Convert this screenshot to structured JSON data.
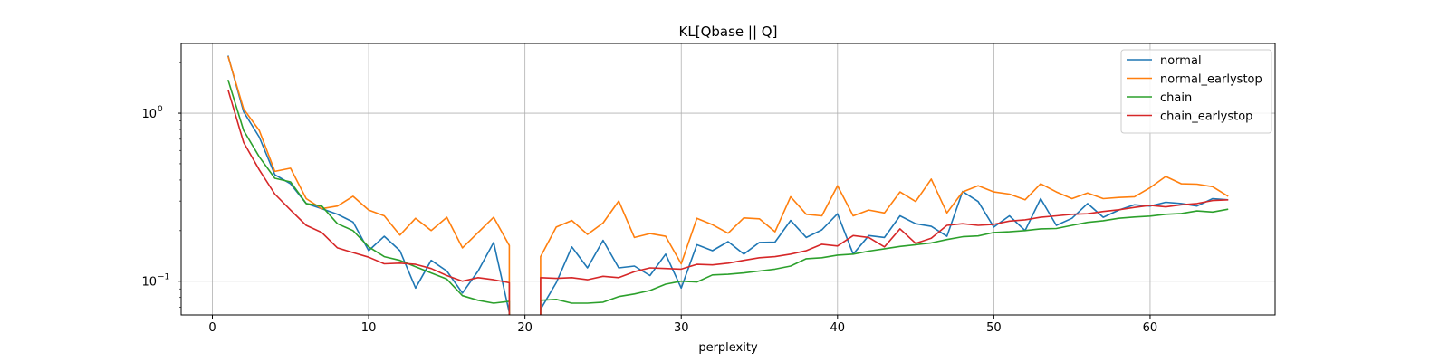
{
  "chart_data": {
    "type": "line",
    "title": "KL[Qbase || Q]",
    "xlabel": "perplexity",
    "ylabel": "",
    "yscale": "log",
    "xlim": [
      -2,
      68
    ],
    "ylim": [
      0.063,
      2.6
    ],
    "xticks": [
      0,
      10,
      20,
      30,
      40,
      50,
      60
    ],
    "yticks": [
      {
        "value": 1.0,
        "label": "10",
        "exp": "0"
      },
      {
        "value": 0.1,
        "label": "10",
        "exp": "−1"
      }
    ],
    "grid": true,
    "legend_position": "upper right",
    "x": [
      1,
      2,
      3,
      4,
      5,
      6,
      7,
      8,
      9,
      10,
      11,
      12,
      13,
      14,
      15,
      16,
      17,
      18,
      19,
      20,
      21,
      22,
      23,
      24,
      25,
      26,
      27,
      28,
      29,
      30,
      31,
      32,
      33,
      34,
      35,
      36,
      37,
      38,
      39,
      40,
      41,
      42,
      43,
      44,
      45,
      46,
      47,
      48,
      49,
      50,
      51,
      52,
      53,
      54,
      55,
      56,
      57,
      58,
      59,
      60,
      61,
      62,
      63,
      64,
      65
    ],
    "series": [
      {
        "name": "normal",
        "color": "#1f77b4",
        "values": [
          2.2,
          1.02,
          0.72,
          0.43,
          0.38,
          0.29,
          0.27,
          0.25,
          0.225,
          0.152,
          0.185,
          0.152,
          0.091,
          0.133,
          0.115,
          0.085,
          0.115,
          0.17,
          0.065,
          null,
          0.068,
          0.098,
          0.16,
          0.12,
          0.175,
          0.12,
          0.123,
          0.108,
          0.145,
          0.091,
          0.165,
          0.152,
          0.172,
          0.145,
          0.17,
          0.171,
          0.23,
          0.182,
          0.202,
          0.252,
          0.145,
          0.187,
          0.182,
          0.245,
          0.22,
          0.212,
          0.185,
          0.342,
          0.298,
          0.21,
          0.245,
          0.2,
          0.31,
          0.215,
          0.237,
          0.29,
          0.24,
          0.265,
          0.285,
          0.28,
          0.295,
          0.29,
          0.28,
          0.31,
          0.305
        ]
      },
      {
        "name": "normal_earlystop",
        "color": "#ff7f0e",
        "values": [
          2.18,
          1.06,
          0.79,
          0.45,
          0.47,
          0.31,
          0.27,
          0.28,
          0.32,
          0.265,
          0.245,
          0.188,
          0.237,
          0.2,
          0.24,
          0.158,
          0.195,
          0.24,
          0.163,
          null,
          0.14,
          0.21,
          0.23,
          0.19,
          0.222,
          0.3,
          0.182,
          0.192,
          0.185,
          0.127,
          0.237,
          0.217,
          0.193,
          0.238,
          0.235,
          0.197,
          0.318,
          0.25,
          0.245,
          0.37,
          0.245,
          0.265,
          0.255,
          0.34,
          0.298,
          0.405,
          0.255,
          0.34,
          0.37,
          0.34,
          0.33,
          0.305,
          0.38,
          0.34,
          0.31,
          0.335,
          0.31,
          0.315,
          0.318,
          0.36,
          0.42,
          0.38,
          0.378,
          0.365,
          0.32
        ]
      },
      {
        "name": "chain",
        "color": "#2ca02c",
        "values": [
          1.58,
          0.79,
          0.55,
          0.41,
          0.39,
          0.29,
          0.28,
          0.22,
          0.2,
          0.16,
          0.14,
          0.133,
          0.122,
          0.112,
          0.103,
          0.082,
          0.077,
          0.074,
          0.076,
          null,
          0.077,
          0.078,
          0.074,
          0.074,
          0.075,
          0.081,
          0.084,
          0.088,
          0.096,
          0.1,
          0.099,
          0.109,
          0.11,
          0.112,
          0.115,
          0.118,
          0.123,
          0.136,
          0.138,
          0.143,
          0.145,
          0.151,
          0.156,
          0.161,
          0.165,
          0.169,
          0.177,
          0.184,
          0.186,
          0.195,
          0.197,
          0.2,
          0.205,
          0.206,
          0.215,
          0.224,
          0.229,
          0.237,
          0.241,
          0.244,
          0.25,
          0.253,
          0.262,
          0.258,
          0.268
        ]
      },
      {
        "name": "chain_earlystop",
        "color": "#d62728",
        "values": [
          1.38,
          0.67,
          0.46,
          0.33,
          0.265,
          0.215,
          0.195,
          0.158,
          0.148,
          0.139,
          0.127,
          0.128,
          0.126,
          0.119,
          0.108,
          0.1,
          0.105,
          0.102,
          0.098,
          null,
          0.105,
          0.104,
          0.105,
          0.102,
          0.107,
          0.105,
          0.114,
          0.12,
          0.119,
          0.118,
          0.126,
          0.125,
          0.128,
          0.133,
          0.138,
          0.14,
          0.145,
          0.152,
          0.166,
          0.162,
          0.187,
          0.182,
          0.16,
          0.205,
          0.168,
          0.18,
          0.215,
          0.22,
          0.215,
          0.218,
          0.228,
          0.232,
          0.24,
          0.245,
          0.25,
          0.252,
          0.26,
          0.266,
          0.275,
          0.283,
          0.277,
          0.285,
          0.29,
          0.302,
          0.305
        ]
      }
    ]
  }
}
